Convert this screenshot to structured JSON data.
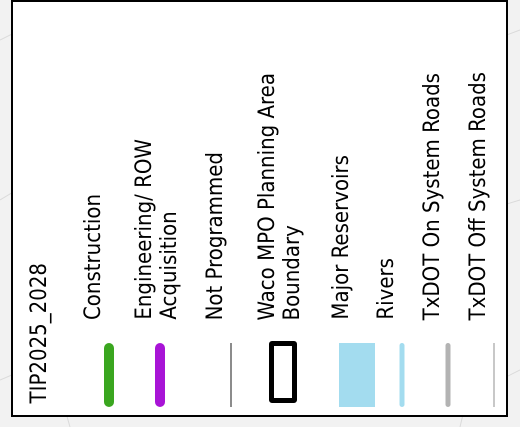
{
  "legend": {
    "title": "TIP2025_2028",
    "items": [
      {
        "label": "Construction",
        "symbol": "thick-line",
        "color": "#3aa61f"
      },
      {
        "label": "Engineering/ ROW\nAcquisition",
        "symbol": "thick-line",
        "color": "#a814d6"
      },
      {
        "label": "Not Programmed",
        "symbol": "thin-line",
        "color": "#8c8c8c"
      },
      {
        "label": "Waco MPO Planning Area\nBoundary",
        "symbol": "boundary",
        "color": "#000000"
      },
      {
        "label": "Major Reservoirs",
        "symbol": "fill",
        "color": "#a3dcef"
      },
      {
        "label": "Rivers",
        "symbol": "medium-line",
        "color": "#a3dcef"
      },
      {
        "label": "TxDOT On System Roads",
        "symbol": "medium-line",
        "color": "#b3b3b3"
      },
      {
        "label": "TxDOT Off System Roads",
        "symbol": "thin-line",
        "color": "#c8c8c8"
      }
    ]
  }
}
